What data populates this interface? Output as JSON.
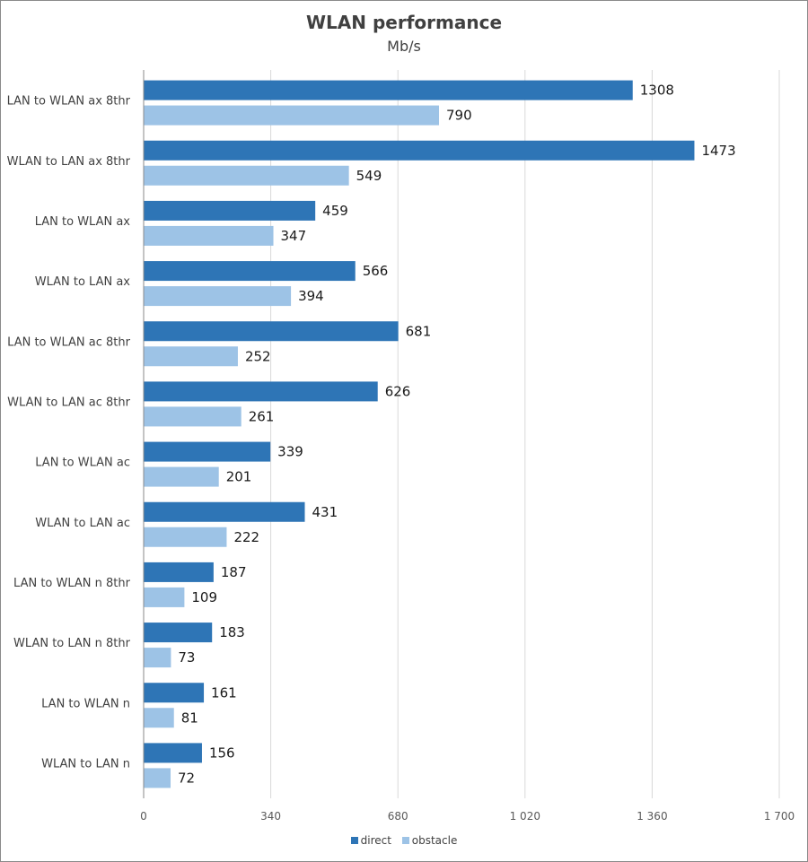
{
  "chart_data": {
    "type": "bar",
    "orientation": "horizontal",
    "title": "WLAN performance",
    "subtitle": "Mb/s",
    "categories": [
      "LAN to WLAN ax 8thr",
      "WLAN to LAN ax 8thr",
      "LAN to WLAN ax",
      "WLAN to LAN ax",
      "LAN to WLAN ac 8thr",
      "WLAN to LAN ac 8thr",
      "LAN to WLAN ac",
      "WLAN to LAN ac",
      "LAN to WLAN n 8thr",
      "WLAN to LAN n 8thr",
      "LAN to WLAN n",
      "WLAN to LAN n"
    ],
    "series": [
      {
        "name": "direct",
        "color": "#2E75B6",
        "values": [
          1308,
          1473,
          459,
          566,
          681,
          626,
          339,
          431,
          187,
          183,
          161,
          156
        ]
      },
      {
        "name": "obstacle",
        "color": "#9DC3E6",
        "values": [
          790,
          549,
          347,
          394,
          252,
          261,
          201,
          222,
          109,
          73,
          81,
          72
        ]
      }
    ],
    "xlim": [
      0,
      1700
    ],
    "xticks": [
      0,
      340,
      680,
      1020,
      1360,
      1700
    ],
    "xtick_labels": [
      "0",
      "340",
      "680",
      "1 020",
      "1 360",
      "1 700"
    ],
    "grid": true,
    "legend_position": "bottom"
  }
}
